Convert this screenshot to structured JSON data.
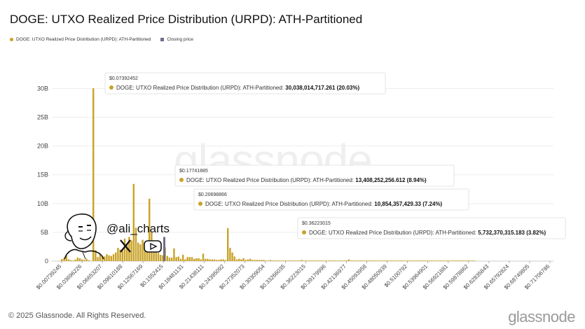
{
  "header": {
    "title": "DOGE: UTXO Realized Price Distribution (URPD): ATH-Partitioned"
  },
  "legend": [
    {
      "label": "DOGE: UTXO Realized Price Distribution (URPD): ATH-Partitioned",
      "color": "#c9a227",
      "icon": "circle"
    },
    {
      "label": "Closing price",
      "color": "#6b6f8a",
      "icon": "square"
    }
  ],
  "watermark": "glassnode",
  "overlay": {
    "handle": "@ali_charts",
    "icons": [
      "avatar-sketch",
      "x-logo-icon",
      "youtube-icon"
    ]
  },
  "footer": {
    "copyright": "© 2025 Glassnode. All Rights Reserved.",
    "brand": "glassnode"
  },
  "colors": {
    "bar": "#c9a227",
    "closing": "#6b6f8a",
    "tooltip_dot": "#c9a227"
  },
  "chart_data": {
    "type": "bar",
    "y_ticks": [
      "0",
      "5B",
      "10B",
      "15B",
      "20B",
      "25B",
      "30B"
    ],
    "ylim": [
      0,
      32000000000
    ],
    "x_tick_labels": [
      "$0.00739245",
      "$0.03696226",
      "$0.06653207",
      "$0.09610188",
      "$0.12567169",
      "$0.1552415",
      "$0.18481131",
      "$0.21438111",
      "$0.24395092",
      "$0.27352073",
      "$0.30309054",
      "$0.33266035",
      "$0.36223015",
      "$0.39179996",
      "$0.42136977",
      "$0.45093958",
      "$0.48050939",
      "$0.5100792",
      "$0.53964901",
      "$0.56921881",
      "$0.59878862",
      "$0.62835843",
      "$0.65792824",
      "$0.68749805",
      "$0.71706786"
    ],
    "closing_price_bar_index": 12,
    "values": [
      0.05,
      0.35,
      0.55,
      0.95,
      0.3,
      0.15,
      0.1,
      0.25,
      0.6,
      0.5,
      0.3,
      0.2,
      0.4,
      0.15,
      0.05,
      30.04,
      1.9,
      0.7,
      1.1,
      0.9,
      0.8,
      1.2,
      1.0,
      0.9,
      1.2,
      1.5,
      2.3,
      2.0,
      1.8,
      3.9,
      2.9,
      4.2,
      3.6,
      13.41,
      5.8,
      3.2,
      2.9,
      3.7,
      2.3,
      1.8,
      10.85,
      5.0,
      2.4,
      1.9,
      1.4,
      1.1,
      1.0,
      2.4,
      0.9,
      0.6,
      0.6,
      2.2,
      0.7,
      0.8,
      0.4,
      1.1,
      0.3,
      0.7,
      0.7,
      0.7,
      0.4,
      0.5,
      0.5,
      0.3,
      1.3,
      0.4,
      0.4,
      0.3,
      0.3,
      0.3,
      0.2,
      0.2,
      0.3,
      0.3,
      0.2,
      5.73,
      2.3,
      1.5,
      0.8,
      0.3,
      0.4,
      0.3,
      0.5,
      0.2,
      0.3,
      0.4,
      0.2,
      0.2,
      0.2,
      0.2,
      0.2,
      0.2,
      0.1,
      0.1,
      0.2,
      0.1,
      0.1,
      0.1,
      0.1,
      0.1,
      0.1,
      0.1,
      0.1,
      0.1,
      0.1,
      0.1,
      0.1,
      0.1,
      0.2,
      0.1,
      0.1,
      0.1,
      0.1,
      0.1,
      0.1,
      0.1,
      0.1,
      0.1,
      0.1,
      0.1,
      0.1,
      0.1,
      0.1,
      0.1,
      0.1,
      0.1,
      0.1,
      0.1,
      0.1,
      0.3,
      0.1,
      0.1,
      0.1,
      0.1,
      0.1,
      0.1,
      0.1,
      0.1,
      0.1,
      0.1,
      0.1,
      0.1,
      0.1,
      0.1,
      0.1,
      0.1,
      0.1,
      0.1,
      0.1,
      0.1,
      0.1,
      0.1,
      0.1,
      0.1,
      0.1,
      0.1,
      0.1,
      0.1,
      0.1,
      0.1,
      0.1,
      0.1,
      0.1,
      0.1,
      0.1,
      0.1,
      0.1,
      0.1,
      0.1,
      0.1,
      0.1,
      0.1,
      0.1,
      0.1,
      0.1,
      0.1,
      0.1,
      0.1,
      0.1,
      0.1,
      0.1,
      0.1,
      0.1,
      0.1,
      0.1,
      0.1
    ],
    "value_unit": "B",
    "annotations": [
      {
        "bar_index": 15,
        "price": "$0.07392452",
        "series": "DOGE: UTXO Realized Price Distribution (URPD): ATH-Partitioned:",
        "value": "30,038,014,717.261 (20.03%)"
      },
      {
        "bar_index": 33,
        "price": "$0.17741885",
        "series": "DOGE: UTXO Realized Price Distribution (URPD): ATH-Partitioned:",
        "value": "13,408,252,256.612 (8.94%)"
      },
      {
        "bar_index": 40,
        "price": "$0.20698866",
        "series": "DOGE: UTXO Realized Price Distribution (URPD): ATH-Partitioned:",
        "value": "10,854,357,429.33 (7.24%)"
      },
      {
        "bar_index": 75,
        "price": "$0.36223015",
        "series": "DOGE: UTXO Realized Price Distribution (URPD): ATH-Partitioned:",
        "value": "5,732,370,315.183 (3.82%)"
      }
    ]
  }
}
